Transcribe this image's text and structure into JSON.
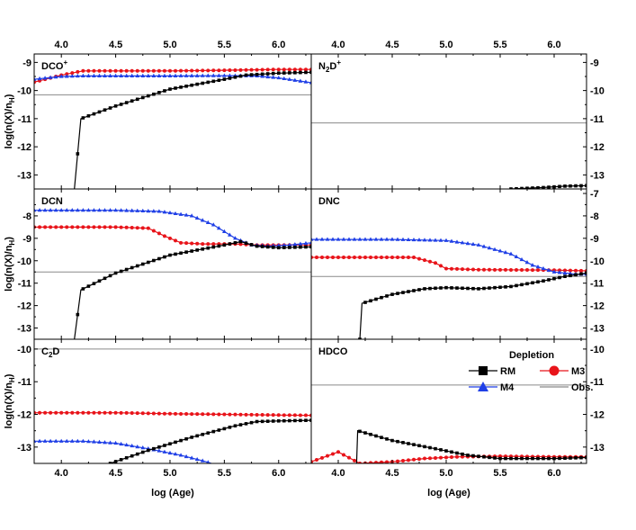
{
  "chart_data": {
    "type": "line",
    "layout": "3x2 panel grid, shared x-axis",
    "xlabel": "log (Age)",
    "ylabel": "log(n(X)/n",
    "ylabel_sub": "H",
    "ylabel_close": ")",
    "xlim": [
      3.75,
      6.3
    ],
    "xticks": [
      4.0,
      4.5,
      5.0,
      5.5,
      6.0
    ],
    "xtick_labels": [
      "4.0",
      "4.5",
      "5.0",
      "5.5",
      "6.0"
    ],
    "colors": {
      "RM": "#000000",
      "M3": "#e8141a",
      "M4": "#1f3fe6",
      "Obs": "#8a8a8a"
    },
    "legend": {
      "title": "Depletion",
      "placement": "lower-right of HDCO panel",
      "entries": [
        {
          "key": "RM",
          "label": "RM",
          "marker": "square"
        },
        {
          "key": "M3",
          "label": "M3",
          "marker": "circle"
        },
        {
          "key": "M4",
          "label": "M4",
          "marker": "triangle"
        },
        {
          "key": "Obs",
          "label": "Obs.",
          "marker": "none"
        }
      ]
    },
    "panels": [
      {
        "id": "dcop",
        "row": 0,
        "col": 0,
        "label": "DCO",
        "sup": "+",
        "sub": "",
        "ylim": [
          -13.5,
          -8.7
        ],
        "yticks": [
          -9,
          -10,
          -11,
          -12,
          -13
        ],
        "obs": -10.15,
        "series": {
          "RM": [
            [
              4.12,
              -13.5
            ],
            [
              4.18,
              -11.0
            ],
            [
              4.5,
              -10.55
            ],
            [
              5.0,
              -9.95
            ],
            [
              5.5,
              -9.6
            ],
            [
              5.7,
              -9.45
            ],
            [
              6.0,
              -9.38
            ],
            [
              6.3,
              -9.35
            ]
          ],
          "M3": [
            [
              3.75,
              -9.7
            ],
            [
              4.0,
              -9.45
            ],
            [
              4.2,
              -9.3
            ],
            [
              4.5,
              -9.3
            ],
            [
              5.0,
              -9.3
            ],
            [
              5.5,
              -9.28
            ],
            [
              6.0,
              -9.25
            ],
            [
              6.3,
              -9.25
            ]
          ],
          "M4": [
            [
              3.75,
              -9.6
            ],
            [
              4.0,
              -9.5
            ],
            [
              4.2,
              -9.48
            ],
            [
              5.0,
              -9.48
            ],
            [
              5.5,
              -9.47
            ],
            [
              5.8,
              -9.48
            ],
            [
              6.0,
              -9.55
            ],
            [
              6.3,
              -9.72
            ]
          ]
        }
      },
      {
        "id": "n2dp",
        "row": 0,
        "col": 1,
        "label": "N",
        "sup": "+",
        "sub": "2",
        "label_tail": "D",
        "ylim": [
          -13.5,
          -8.7
        ],
        "yticks": [
          -9,
          -10,
          -11,
          -12,
          -13
        ],
        "obs": -11.15,
        "series": {
          "RM": [
            [
              5.6,
              -13.5
            ],
            [
              5.9,
              -13.45
            ],
            [
              6.1,
              -13.4
            ],
            [
              6.3,
              -13.38
            ]
          ]
        }
      },
      {
        "id": "dcn",
        "row": 1,
        "col": 0,
        "label": "DCN",
        "sup": "",
        "sub": "",
        "ylim": [
          -13.5,
          -6.8
        ],
        "yticks": [
          -8,
          -9,
          -10,
          -11,
          -12,
          -13
        ],
        "obs": -10.5,
        "series": {
          "RM": [
            [
              4.12,
              -13.5
            ],
            [
              4.18,
              -11.3
            ],
            [
              4.5,
              -10.55
            ],
            [
              5.0,
              -9.75
            ],
            [
              5.5,
              -9.3
            ],
            [
              5.65,
              -9.15
            ],
            [
              5.8,
              -9.35
            ],
            [
              6.0,
              -9.42
            ],
            [
              6.3,
              -9.38
            ]
          ],
          "M3": [
            [
              3.75,
              -8.5
            ],
            [
              4.5,
              -8.5
            ],
            [
              4.8,
              -8.55
            ],
            [
              4.95,
              -8.9
            ],
            [
              5.1,
              -9.2
            ],
            [
              5.3,
              -9.25
            ],
            [
              5.6,
              -9.25
            ],
            [
              5.8,
              -9.3
            ],
            [
              6.0,
              -9.3
            ],
            [
              6.3,
              -9.3
            ]
          ],
          "M4": [
            [
              3.75,
              -7.75
            ],
            [
              4.5,
              -7.75
            ],
            [
              4.9,
              -7.8
            ],
            [
              5.2,
              -8.0
            ],
            [
              5.4,
              -8.4
            ],
            [
              5.6,
              -9.0
            ],
            [
              5.75,
              -9.3
            ],
            [
              5.9,
              -9.35
            ],
            [
              6.1,
              -9.3
            ],
            [
              6.3,
              -9.2
            ]
          ]
        }
      },
      {
        "id": "dnc",
        "row": 1,
        "col": 1,
        "label": "DNC",
        "sup": "",
        "sub": "",
        "ylim": [
          -13.5,
          -6.8
        ],
        "yticks": [
          -7,
          -8,
          -9,
          -10,
          -11,
          -12,
          -13
        ],
        "obs": -10.7,
        "series": {
          "RM": [
            [
              4.2,
              -13.5
            ],
            [
              4.22,
              -11.9
            ],
            [
              4.5,
              -11.5
            ],
            [
              4.8,
              -11.25
            ],
            [
              5.0,
              -11.2
            ],
            [
              5.3,
              -11.25
            ],
            [
              5.6,
              -11.15
            ],
            [
              5.9,
              -10.9
            ],
            [
              6.1,
              -10.7
            ],
            [
              6.3,
              -10.55
            ]
          ],
          "M3": [
            [
              3.75,
              -9.85
            ],
            [
              4.5,
              -9.85
            ],
            [
              4.7,
              -9.85
            ],
            [
              4.9,
              -10.1
            ],
            [
              5.0,
              -10.35
            ],
            [
              5.3,
              -10.4
            ],
            [
              6.0,
              -10.42
            ],
            [
              6.3,
              -10.45
            ]
          ],
          "M4": [
            [
              3.75,
              -9.05
            ],
            [
              4.5,
              -9.05
            ],
            [
              5.0,
              -9.1
            ],
            [
              5.3,
              -9.3
            ],
            [
              5.6,
              -9.7
            ],
            [
              5.8,
              -10.2
            ],
            [
              6.0,
              -10.5
            ],
            [
              6.2,
              -10.6
            ],
            [
              6.3,
              -10.6
            ]
          ]
        }
      },
      {
        "id": "c2d",
        "row": 2,
        "col": 0,
        "label": "C",
        "sup": "",
        "sub": "2",
        "label_tail": "D",
        "ylim": [
          -13.5,
          -9.7
        ],
        "yticks": [
          -10,
          -11,
          -12,
          -13
        ],
        "obs": -10.0,
        "series": {
          "RM": [
            [
              4.45,
              -13.5
            ],
            [
              4.8,
              -13.1
            ],
            [
              5.2,
              -12.7
            ],
            [
              5.6,
              -12.35
            ],
            [
              5.8,
              -12.22
            ],
            [
              6.0,
              -12.2
            ],
            [
              6.3,
              -12.18
            ]
          ],
          "M3": [
            [
              3.75,
              -11.95
            ],
            [
              4.5,
              -11.95
            ],
            [
              5.0,
              -11.98
            ],
            [
              5.5,
              -12.0
            ],
            [
              6.0,
              -12.02
            ],
            [
              6.3,
              -12.03
            ]
          ],
          "M4": [
            [
              3.75,
              -12.82
            ],
            [
              4.2,
              -12.82
            ],
            [
              4.5,
              -12.88
            ],
            [
              4.8,
              -13.05
            ],
            [
              5.1,
              -13.25
            ],
            [
              5.3,
              -13.42
            ],
            [
              5.38,
              -13.5
            ]
          ]
        }
      },
      {
        "id": "hdco",
        "row": 2,
        "col": 1,
        "label": "HDCO",
        "sup": "",
        "sub": "",
        "ylim": [
          -13.5,
          -9.7
        ],
        "yticks": [
          -10,
          -11,
          -12,
          -13
        ],
        "obs": -11.1,
        "series": {
          "RM": [
            [
              4.17,
              -13.5
            ],
            [
              4.18,
              -12.5
            ],
            [
              4.5,
              -12.8
            ],
            [
              4.9,
              -13.05
            ],
            [
              5.2,
              -13.25
            ],
            [
              5.5,
              -13.35
            ],
            [
              6.0,
              -13.35
            ],
            [
              6.3,
              -13.32
            ]
          ],
          "M3": [
            [
              3.75,
              -13.45
            ],
            [
              4.0,
              -13.15
            ],
            [
              4.2,
              -13.5
            ],
            [
              4.5,
              -13.45
            ],
            [
              4.8,
              -13.35
            ],
            [
              5.1,
              -13.3
            ],
            [
              5.5,
              -13.28
            ],
            [
              6.0,
              -13.3
            ],
            [
              6.3,
              -13.3
            ]
          ]
        }
      }
    ]
  }
}
